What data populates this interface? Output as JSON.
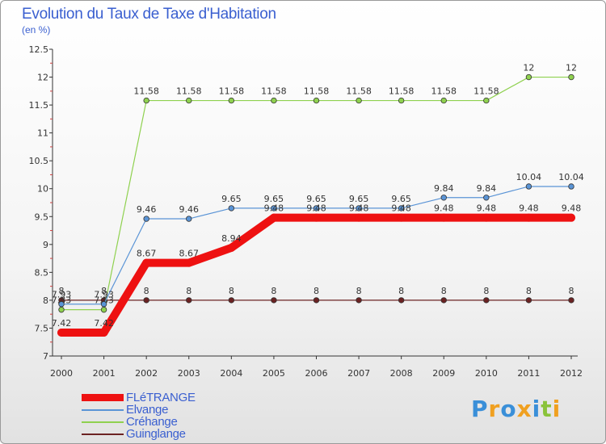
{
  "title": "Evolution du Taux de Taxe d'Habitation",
  "subtitle": "(en %)",
  "chart_data": {
    "type": "line",
    "title": "Evolution du Taux de Taxe d'Habitation",
    "ylabel": "(en %)",
    "xlabel": "",
    "categories": [
      "2000",
      "2001",
      "2002",
      "2003",
      "2004",
      "2005",
      "2006",
      "2007",
      "2008",
      "2009",
      "2010",
      "2011",
      "2012"
    ],
    "ylim": [
      7,
      12.5
    ],
    "yticks": [
      "7",
      "7.5",
      "8",
      "8.5",
      "9",
      "9.5",
      "10",
      "10.5",
      "11",
      "11.5",
      "12",
      "12.5"
    ],
    "grid": false,
    "legend_position": "bottom-left",
    "series": [
      {
        "name": "Guinglange",
        "color": "#6b2222",
        "style": "thin",
        "values": [
          8,
          8,
          8,
          8,
          8,
          8,
          8,
          8,
          8,
          8,
          8,
          8,
          8
        ],
        "labels": [
          "8",
          "8",
          "8",
          "8",
          "8",
          "8",
          "8",
          "8",
          "8",
          "8",
          "8",
          "8",
          "8"
        ]
      },
      {
        "name": "Créhange",
        "color": "#8fd14f",
        "style": "thin",
        "values": [
          7.83,
          7.83,
          11.58,
          11.58,
          11.58,
          11.58,
          11.58,
          11.58,
          11.58,
          11.58,
          11.58,
          12,
          12
        ],
        "labels": [
          "7.83",
          "7.83",
          "11.58",
          "11.58",
          "11.58",
          "11.58",
          "11.58",
          "11.58",
          "11.58",
          "11.58",
          "11.58",
          "12",
          "12"
        ]
      },
      {
        "name": "Elvange",
        "color": "#5a94d6",
        "style": "thin",
        "values": [
          7.93,
          7.93,
          9.46,
          9.46,
          9.65,
          9.65,
          9.65,
          9.65,
          9.65,
          9.84,
          9.84,
          10.04,
          10.04
        ],
        "labels": [
          "7.93",
          "7.93",
          "9.46",
          "9.46",
          "9.65",
          "9.65",
          "9.65",
          "9.65",
          "9.65",
          "9.84",
          "9.84",
          "10.04",
          "10.04"
        ]
      },
      {
        "name": "FLéTRANGE",
        "color": "#ee1111",
        "style": "thick",
        "values": [
          7.42,
          7.42,
          8.67,
          8.67,
          8.94,
          9.48,
          9.48,
          9.48,
          9.48,
          9.48,
          9.48,
          9.48,
          9.48
        ],
        "labels": [
          "7.42",
          "7.42",
          "8.67",
          "8.67",
          "8.94",
          "9.48",
          "9.48",
          "9.48",
          "9.48",
          "9.48",
          "9.48",
          "9.48",
          "9.48"
        ]
      }
    ]
  },
  "legend": [
    {
      "label": "FLéTRANGE",
      "color": "#ee1111",
      "thickness": "thick"
    },
    {
      "label": "Elvange",
      "color": "#5a94d6",
      "thickness": "thin"
    },
    {
      "label": "Créhange",
      "color": "#8fd14f",
      "thickness": "thin"
    },
    {
      "label": "Guinglange",
      "color": "#6b2222",
      "thickness": "thin"
    }
  ],
  "logo": {
    "letters": [
      "P",
      "r",
      "o",
      "x",
      "i",
      "t",
      "i"
    ],
    "colors": [
      "#3a8fd8",
      "#f0a020",
      "#3a8fd8",
      "#f0a020",
      "#3a8fd8",
      "#8ac33a",
      "#f0a020"
    ]
  }
}
